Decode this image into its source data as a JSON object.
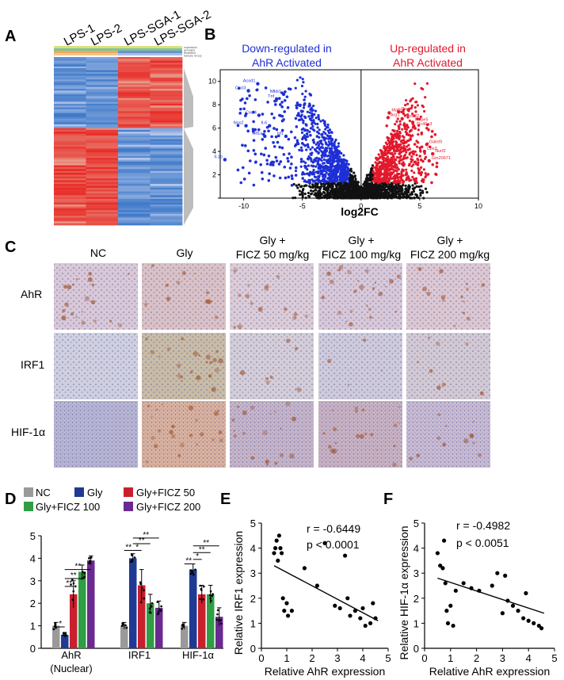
{
  "figure": {
    "panel_letters": [
      "A",
      "B",
      "C",
      "D",
      "E",
      "F"
    ]
  },
  "colors": {
    "heat_red": "#e8262b",
    "heat_blue": "#3b78c4",
    "down": "#1e2fd6",
    "up": "#e2192c",
    "ns": "#111111",
    "nc_gray": "#9a9a9a",
    "gly_blue": "#1f3a93",
    "ficz50_red": "#c8202e",
    "ficz100_green": "#2f9e44",
    "ficz200_purple": "#6a2a8f"
  },
  "panelA": {
    "columns": [
      "LPS-1",
      "LPS-2",
      "LPS-SGA-1",
      "LPS-SGA-2"
    ],
    "tracks": [
      "expression",
      "genotype",
      "treatment",
      "Sample Group"
    ]
  },
  "panelB": {
    "label_down": [
      "Down-regulated in",
      "AhR Activated"
    ],
    "label_up": [
      "Up-regulated in",
      "AhR Activated"
    ],
    "down_genes": [
      "Acod1",
      "Cxcl3",
      "Nfkb1",
      "Tnf",
      "Cxcl4",
      "Nos2",
      "Il-6",
      "Hif1a",
      "Irf1",
      "Il-1b"
    ],
    "up_genes": [
      "Mafb",
      "Cxcl4",
      "Arg1",
      "Fbxo32",
      "Mxpe5",
      "Slc46a3",
      "Galnt9",
      "Cbx3",
      "Nurf2",
      "Gm20671"
    ]
  },
  "panelC": {
    "columns": [
      "NC",
      "Gly",
      "Gly +",
      "Gly +",
      "Gly +"
    ],
    "column_sub": [
      "",
      "",
      "FICZ 50 mg/kg",
      "FICZ 100 mg/kg",
      "FICZ 200 mg/kg"
    ],
    "rows": [
      "AhR",
      "IRF1",
      "HIF-1α"
    ]
  },
  "panelD": {
    "legend": [
      "NC",
      "Gly",
      "Gly+FICZ 50",
      "Gly+FICZ 100",
      "Gly+FICZ 200"
    ],
    "group_labels": [
      "AhR",
      "IRF1",
      "HIF-1α"
    ],
    "group_sublabel": "(Nuclear)",
    "sig": [
      "*",
      "**",
      "**",
      "**",
      "**",
      "*",
      "**",
      "**",
      "**",
      "*",
      "**",
      "**"
    ]
  },
  "panelE": {
    "stats": [
      "r = -0.6449",
      "p < 0.0001"
    ]
  },
  "panelF": {
    "stats": [
      "r = -0.4982",
      "p < 0.0051"
    ]
  },
  "chart_data": [
    {
      "id": "B",
      "type": "scatter",
      "title": "",
      "xlabel": "log2FC",
      "ylabel": "",
      "xlim": [
        -12,
        10
      ],
      "ylim": [
        0,
        11
      ],
      "xticks": [
        -10,
        -5,
        0,
        5,
        10
      ],
      "yticks": [
        0,
        2,
        4,
        6,
        8,
        10
      ],
      "labeled_points": [
        {
          "gene": "Acod1",
          "x": -8.8,
          "y": 9.8,
          "group": "down"
        },
        {
          "gene": "Cxcl3",
          "x": -9.6,
          "y": 9.2,
          "group": "down"
        },
        {
          "gene": "Nfkb1",
          "x": -6.6,
          "y": 8.9,
          "group": "down"
        },
        {
          "gene": "Tnf",
          "x": -7.2,
          "y": 8.5,
          "group": "down"
        },
        {
          "gene": "Cxcl4",
          "x": -8.7,
          "y": 7.1,
          "group": "down"
        },
        {
          "gene": "Nos2",
          "x": -9.8,
          "y": 6.2,
          "group": "down"
        },
        {
          "gene": "Il-6",
          "x": -7.8,
          "y": 6.2,
          "group": "down"
        },
        {
          "gene": "Hif1a",
          "x": -8.2,
          "y": 5.3,
          "group": "down"
        },
        {
          "gene": "Irf1",
          "x": -6.4,
          "y": 5.3,
          "group": "down"
        },
        {
          "gene": "Il-1b",
          "x": -11.6,
          "y": 3.3,
          "group": "down"
        },
        {
          "gene": "Mafb",
          "x": 2.4,
          "y": 7.3,
          "group": "up"
        },
        {
          "gene": "Cxcl4",
          "x": 3.2,
          "y": 7.4,
          "group": "up"
        },
        {
          "gene": "Arg1",
          "x": 2.3,
          "y": 6.9,
          "group": "up"
        },
        {
          "gene": "Fbxo32",
          "x": 3.5,
          "y": 6.8,
          "group": "up"
        },
        {
          "gene": "Mxpe5",
          "x": 4.4,
          "y": 6.5,
          "group": "up"
        },
        {
          "gene": "Slc46a3",
          "x": 4.5,
          "y": 6.1,
          "group": "up"
        },
        {
          "gene": "Galnt9",
          "x": 5.6,
          "y": 4.6,
          "group": "up"
        },
        {
          "gene": "Cbx3",
          "x": 5.4,
          "y": 4.0,
          "group": "up"
        },
        {
          "gene": "Nurf2",
          "x": 6.1,
          "y": 3.8,
          "group": "up"
        },
        {
          "gene": "Gm20671",
          "x": 5.8,
          "y": 3.2,
          "group": "up"
        }
      ]
    },
    {
      "id": "D",
      "type": "bar",
      "title": "",
      "xlabel": "",
      "ylabel": "",
      "ylim": [
        0,
        5
      ],
      "yticks": [
        0,
        1,
        2,
        3,
        4,
        5
      ],
      "categories": [
        "AhR (Nuclear)",
        "IRF1",
        "HIF-1α"
      ],
      "series": [
        {
          "name": "NC",
          "values": [
            1.0,
            1.0,
            1.0
          ],
          "err": [
            0.15,
            0.15,
            0.15
          ]
        },
        {
          "name": "Gly",
          "values": [
            0.6,
            4.0,
            3.5
          ],
          "err": [
            0.1,
            0.2,
            0.25
          ]
        },
        {
          "name": "Gly+FICZ 50",
          "values": [
            2.4,
            2.8,
            2.4
          ],
          "err": [
            0.6,
            0.7,
            0.4
          ]
        },
        {
          "name": "Gly+FICZ 100",
          "values": [
            3.4,
            2.0,
            2.4
          ],
          "err": [
            0.3,
            0.4,
            0.4
          ]
        },
        {
          "name": "Gly+FICZ 200",
          "values": [
            3.9,
            1.8,
            1.4
          ],
          "err": [
            0.2,
            0.3,
            0.4
          ]
        }
      ]
    },
    {
      "id": "E",
      "type": "scatter",
      "title": "",
      "xlabel": "Relative AhR expression",
      "ylabel": "Relative IRF1 expression",
      "xlim": [
        0,
        5
      ],
      "ylim": [
        0,
        5
      ],
      "xticks": [
        0,
        1,
        2,
        3,
        4,
        5
      ],
      "yticks": [
        0,
        1,
        2,
        3,
        4,
        5
      ],
      "points": [
        [
          0.5,
          3.8
        ],
        [
          0.55,
          4.0
        ],
        [
          0.6,
          4.3
        ],
        [
          0.7,
          4.5
        ],
        [
          0.75,
          4.0
        ],
        [
          0.8,
          3.8
        ],
        [
          0.65,
          3.5
        ],
        [
          0.85,
          2.0
        ],
        [
          0.9,
          1.5
        ],
        [
          1.0,
          1.8
        ],
        [
          1.05,
          1.3
        ],
        [
          1.2,
          1.5
        ],
        [
          1.7,
          3.2
        ],
        [
          2.2,
          2.5
        ],
        [
          2.5,
          4.2
        ],
        [
          2.9,
          1.7
        ],
        [
          3.1,
          1.6
        ],
        [
          3.3,
          3.7
        ],
        [
          3.4,
          2.0
        ],
        [
          3.5,
          1.3
        ],
        [
          3.7,
          1.5
        ],
        [
          3.9,
          1.2
        ],
        [
          4.0,
          1.6
        ],
        [
          4.1,
          0.9
        ],
        [
          4.3,
          1.0
        ],
        [
          4.4,
          1.8
        ],
        [
          4.5,
          1.2
        ]
      ],
      "fit": [
        [
          0.5,
          3.3
        ],
        [
          4.6,
          1.1
        ]
      ]
    },
    {
      "id": "F",
      "type": "scatter",
      "title": "",
      "xlabel": "Relative AhR expression",
      "ylabel": "Relative HIF-1α expression",
      "xlim": [
        0,
        5
      ],
      "ylim": [
        0,
        5
      ],
      "xticks": [
        0,
        1,
        2,
        3,
        4,
        5
      ],
      "yticks": [
        0,
        1,
        2,
        3,
        4,
        5
      ],
      "points": [
        [
          0.5,
          3.8
        ],
        [
          0.6,
          3.3
        ],
        [
          0.7,
          3.2
        ],
        [
          0.75,
          4.3
        ],
        [
          0.8,
          2.6
        ],
        [
          0.85,
          1.5
        ],
        [
          0.9,
          1.0
        ],
        [
          1.0,
          1.7
        ],
        [
          1.1,
          0.9
        ],
        [
          1.2,
          2.3
        ],
        [
          1.5,
          2.6
        ],
        [
          1.8,
          2.4
        ],
        [
          2.1,
          2.3
        ],
        [
          2.6,
          2.5
        ],
        [
          2.8,
          3.0
        ],
        [
          3.0,
          1.4
        ],
        [
          3.1,
          2.9
        ],
        [
          3.2,
          1.9
        ],
        [
          3.4,
          1.7
        ],
        [
          3.6,
          1.5
        ],
        [
          3.8,
          1.2
        ],
        [
          3.9,
          2.2
        ],
        [
          4.0,
          1.1
        ],
        [
          4.2,
          1.0
        ],
        [
          4.4,
          0.9
        ],
        [
          4.5,
          0.8
        ]
      ],
      "fit": [
        [
          0.5,
          2.8
        ],
        [
          4.6,
          1.4
        ]
      ]
    }
  ]
}
